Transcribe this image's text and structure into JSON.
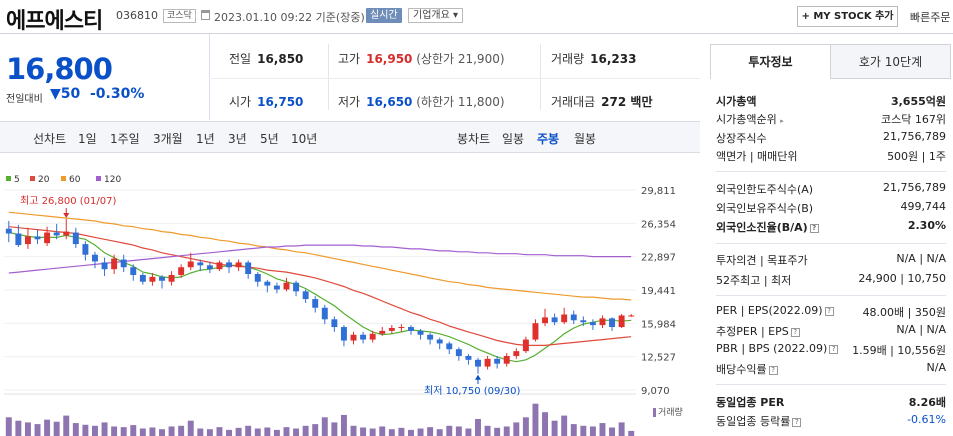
{
  "header": {
    "stock_name": "에프에스티",
    "stock_code": "036810",
    "market": "코스닥",
    "datetime": "2023.01.10 09:22 기준(장중)",
    "live_label": "실시간",
    "overview_label": "기업개요 ▾",
    "mystock_button": "+ MY STOCK 추가",
    "quick_order": "빠른주문"
  },
  "price": {
    "current": "16,800",
    "change_label": "전일대비",
    "change": "▼50",
    "change_pct": "-0.30%"
  },
  "stats": {
    "prev_close_label": "전일",
    "prev_close": "16,850",
    "high_label": "고가",
    "high": "16,950",
    "upper_limit": "(상한가 21,900)",
    "volume_label": "거래량",
    "volume": "16,233",
    "open_label": "시가",
    "open": "16,750",
    "low_label": "저가",
    "low": "16,650",
    "lower_limit": "(하한가 11,800)",
    "amount_label": "거래대금",
    "amount": "272 백만"
  },
  "period_tabs": {
    "line_chart": "선차트",
    "d1": "1일",
    "w1": "1주일",
    "m3": "3개월",
    "y1": "1년",
    "y3": "3년",
    "y5": "5년",
    "y10": "10년",
    "candle_chart": "봉차트",
    "daily": "일봉",
    "weekly": "주봉",
    "monthly": "월봉"
  },
  "chart_legend": {
    "ma5": "5",
    "ma20": "20",
    "ma60": "60",
    "ma120": "120",
    "ma5_color": "#55b030",
    "ma20_color": "#e04a3c",
    "ma60_color": "#ef9a2c",
    "ma120_color": "#a35fd0"
  },
  "chart_annotations": {
    "high": "최고 26,800 (01/07)",
    "low": "최저 10,750 (09/30)",
    "volume_label": "거래량"
  },
  "chart_data": {
    "type": "candlestick",
    "period": "주봉",
    "y_ticks": [
      29811,
      26354,
      22897,
      19441,
      15984,
      12527,
      9070
    ],
    "y_tick_labels": [
      "29,811",
      "26,354",
      "22,897",
      "19,441",
      "15,984",
      "12,527",
      "9,070"
    ],
    "ylim": [
      9070,
      29811
    ],
    "max_point": {
      "value": 26800,
      "date": "01/07"
    },
    "min_point": {
      "value": 10750,
      "date": "09/30"
    },
    "candles": [
      [
        25800,
        25300,
        26600,
        24400
      ],
      [
        25300,
        24100,
        26200,
        23900
      ],
      [
        24200,
        25000,
        25900,
        23700
      ],
      [
        25000,
        24700,
        25700,
        24200
      ],
      [
        24300,
        25400,
        26000,
        24000
      ],
      [
        25400,
        25100,
        26300,
        24700
      ],
      [
        25100,
        25500,
        26800,
        24700
      ],
      [
        25400,
        24200,
        25900,
        23800
      ],
      [
        24200,
        23100,
        24500,
        22500
      ],
      [
        23100,
        22400,
        23400,
        21700
      ],
      [
        22300,
        21600,
        22800,
        20900
      ],
      [
        21600,
        22700,
        23100,
        21100
      ],
      [
        22600,
        21800,
        23100,
        21300
      ],
      [
        21800,
        21000,
        22100,
        20400
      ],
      [
        21000,
        20300,
        21200,
        20000
      ],
      [
        20300,
        20800,
        21200,
        19900
      ],
      [
        20800,
        20400,
        21000,
        19600
      ],
      [
        20300,
        21000,
        21400,
        19900
      ],
      [
        21000,
        21800,
        22100,
        20700
      ],
      [
        21800,
        22400,
        23300,
        21500
      ],
      [
        22300,
        22000,
        22600,
        21400
      ],
      [
        22000,
        21600,
        22300,
        21200
      ],
      [
        21600,
        22300,
        22500,
        21400
      ],
      [
        22300,
        21800,
        22600,
        21200
      ],
      [
        21800,
        22300,
        22600,
        21400
      ],
      [
        22300,
        21100,
        22500,
        20600
      ],
      [
        21100,
        20300,
        21300,
        19800
      ],
      [
        20300,
        19900,
        20500,
        19200
      ],
      [
        19900,
        19500,
        20200,
        19100
      ],
      [
        19500,
        20200,
        20700,
        19300
      ],
      [
        20200,
        19300,
        20400,
        18800
      ],
      [
        19300,
        18500,
        19500,
        18100
      ],
      [
        18500,
        17600,
        18800,
        17100
      ],
      [
        17600,
        16400,
        17900,
        15900
      ],
      [
        16400,
        15600,
        16700,
        15100
      ],
      [
        15600,
        14200,
        15800,
        13600
      ],
      [
        14200,
        14800,
        15100,
        13800
      ],
      [
        14800,
        14300,
        15100,
        13900
      ],
      [
        14300,
        14900,
        15200,
        14000
      ],
      [
        14900,
        15200,
        15600,
        14700
      ],
      [
        15200,
        15500,
        15800,
        14900
      ],
      [
        15500,
        15600,
        15900,
        15100
      ],
      [
        15600,
        15200,
        15800,
        14800
      ],
      [
        15200,
        14800,
        15400,
        14300
      ],
      [
        14800,
        14300,
        15000,
        13800
      ],
      [
        14300,
        13900,
        14500,
        13300
      ],
      [
        13900,
        13300,
        14100,
        12800
      ],
      [
        13300,
        12600,
        13500,
        12100
      ],
      [
        12600,
        12200,
        12800,
        11700
      ],
      [
        12200,
        11500,
        12400,
        10750
      ],
      [
        11500,
        12300,
        12600,
        11200
      ],
      [
        12300,
        11800,
        12600,
        11300
      ],
      [
        11800,
        12600,
        12900,
        11500
      ],
      [
        12600,
        13100,
        13400,
        12300
      ],
      [
        13100,
        14300,
        14600,
        12900
      ],
      [
        14300,
        16000,
        16400,
        14100
      ],
      [
        16000,
        16600,
        17500,
        15700
      ],
      [
        16600,
        16100,
        17000,
        15800
      ],
      [
        16100,
        16900,
        17600,
        15900
      ],
      [
        16900,
        16300,
        17300,
        15900
      ],
      [
        16300,
        16100,
        16700,
        15700
      ],
      [
        16100,
        15800,
        16400,
        15300
      ],
      [
        15800,
        16500,
        16800,
        15500
      ],
      [
        16500,
        15600,
        16600,
        15200
      ],
      [
        15600,
        16800,
        16950,
        15500
      ],
      [
        16750,
        16800,
        16950,
        16650
      ]
    ],
    "series": [
      {
        "name": "5",
        "values": [
          25400,
          25200,
          25000,
          24900,
          24900,
          24900,
          25100,
          24900,
          24700,
          24100,
          23300,
          22800,
          22300,
          21900,
          21300,
          21100,
          20800,
          20700,
          20800,
          21200,
          21500,
          21600,
          21800,
          22000,
          22000,
          21800,
          21500,
          21100,
          20600,
          20300,
          20000,
          19600,
          19000,
          18400,
          17800,
          17000,
          16300,
          15600,
          15100,
          14800,
          14900,
          15100,
          15300,
          15200,
          15100,
          14900,
          14600,
          14200,
          13800,
          13300,
          12900,
          12500,
          12200,
          12000,
          12200,
          12700,
          13400,
          14100,
          14900,
          15500,
          15900,
          16100,
          16300,
          16300,
          16200,
          16300
        ]
      },
      {
        "name": "20",
        "values": [
          26000,
          25900,
          25800,
          25700,
          25600,
          25500,
          25400,
          25300,
          25100,
          24900,
          24700,
          24500,
          24300,
          24100,
          23800,
          23600,
          23300,
          23100,
          22900,
          22700,
          22500,
          22300,
          22100,
          22000,
          21900,
          21800,
          21700,
          21500,
          21400,
          21300,
          21100,
          20900,
          20700,
          20400,
          20100,
          19800,
          19400,
          19100,
          18700,
          18300,
          17900,
          17500,
          17100,
          16800,
          16400,
          16100,
          15700,
          15400,
          15100,
          14800,
          14500,
          14200,
          14000,
          13800,
          13700,
          13700,
          13700,
          13800,
          13900,
          14000,
          14100,
          14200,
          14300,
          14400,
          14500,
          14600
        ]
      },
      {
        "name": "60",
        "values": [
          27500,
          27400,
          27300,
          27200,
          27100,
          27000,
          26900,
          26800,
          26700,
          26600,
          26400,
          26300,
          26100,
          26000,
          25800,
          25700,
          25500,
          25400,
          25200,
          25100,
          24900,
          24800,
          24600,
          24500,
          24300,
          24200,
          24000,
          23900,
          23700,
          23600,
          23400,
          23300,
          23100,
          22900,
          22700,
          22500,
          22300,
          22100,
          21900,
          21700,
          21500,
          21300,
          21100,
          20900,
          20700,
          20500,
          20300,
          20200,
          20000,
          19900,
          19700,
          19600,
          19500,
          19400,
          19300,
          19200,
          19100,
          19000,
          18900,
          18800,
          18700,
          18700,
          18600,
          18500,
          18500,
          18400
        ]
      },
      {
        "name": "120",
        "values": [
          21200,
          21300,
          21400,
          21500,
          21600,
          21700,
          21800,
          21900,
          22000,
          22100,
          22200,
          22300,
          22400,
          22500,
          22600,
          22700,
          22800,
          22900,
          23000,
          23100,
          23200,
          23300,
          23400,
          23500,
          23600,
          23700,
          23800,
          23900,
          23900,
          24000,
          24000,
          24100,
          24100,
          24100,
          24100,
          24100,
          24100,
          24000,
          24000,
          23900,
          23900,
          23800,
          23700,
          23700,
          23600,
          23500,
          23500,
          23400,
          23400,
          23300,
          23300,
          23200,
          23200,
          23200,
          23100,
          23100,
          23100,
          23000,
          23000,
          23000,
          23000,
          22900,
          22900,
          22900,
          22900,
          22900
        ]
      }
    ],
    "volume_relative": [
      0.55,
      0.45,
      0.4,
      0.35,
      0.48,
      0.42,
      0.6,
      0.38,
      0.33,
      0.3,
      0.4,
      0.28,
      0.26,
      0.32,
      0.22,
      0.25,
      0.2,
      0.28,
      0.3,
      0.45,
      0.22,
      0.2,
      0.26,
      0.18,
      0.24,
      0.3,
      0.22,
      0.25,
      0.18,
      0.26,
      0.22,
      0.3,
      0.35,
      0.55,
      0.4,
      0.62,
      0.3,
      0.25,
      0.22,
      0.28,
      0.2,
      0.24,
      0.18,
      0.22,
      0.26,
      0.2,
      0.3,
      0.28,
      0.22,
      0.5,
      0.3,
      0.24,
      0.28,
      0.4,
      0.55,
      0.95,
      0.7,
      0.45,
      0.6,
      0.35,
      0.3,
      0.28,
      0.38,
      0.25,
      0.4,
      0.15
    ],
    "volume_colors": "volume bars in purple #8e74b0"
  },
  "invest": {
    "tab_active": "투자정보",
    "tab_other": "호가 10단계",
    "market_cap_label": "시가총액",
    "market_cap": "3,655억원",
    "cap_rank_label": "시가총액순위",
    "cap_rank": "코스닥 167위",
    "shares_label": "상장주식수",
    "shares": "21,756,789",
    "face_label": "액면가 | 매매단위",
    "face": "500원 | 1주",
    "foreign_limit_label": "외국인한도주식수(A)",
    "foreign_limit": "21,756,789",
    "foreign_hold_label": "외국인보유주식수(B)",
    "foreign_hold": "499,744",
    "foreign_ratio_label": "외국인소진율(B/A)",
    "foreign_ratio": "2.30%",
    "opinion_label": "투자의견 | 목표주가",
    "opinion": "N/A | N/A",
    "w52_label": "52주최고 | 최저",
    "w52": "24,900 | 10,750",
    "per_label": "PER | EPS(2022.09)",
    "per": "48.00배 | 350원",
    "est_per_label": "추정PER | EPS",
    "est_per": "N/A | N/A",
    "pbr_label": "PBR | BPS (2022.09)",
    "pbr": "1.59배 | 10,556원",
    "div_label": "배당수익률",
    "div": "N/A",
    "sector_per_label": "동일업종 PER",
    "sector_per": "8.26배",
    "sector_rate_label": "동일업종 등락률",
    "sector_rate": "-0.61%"
  }
}
